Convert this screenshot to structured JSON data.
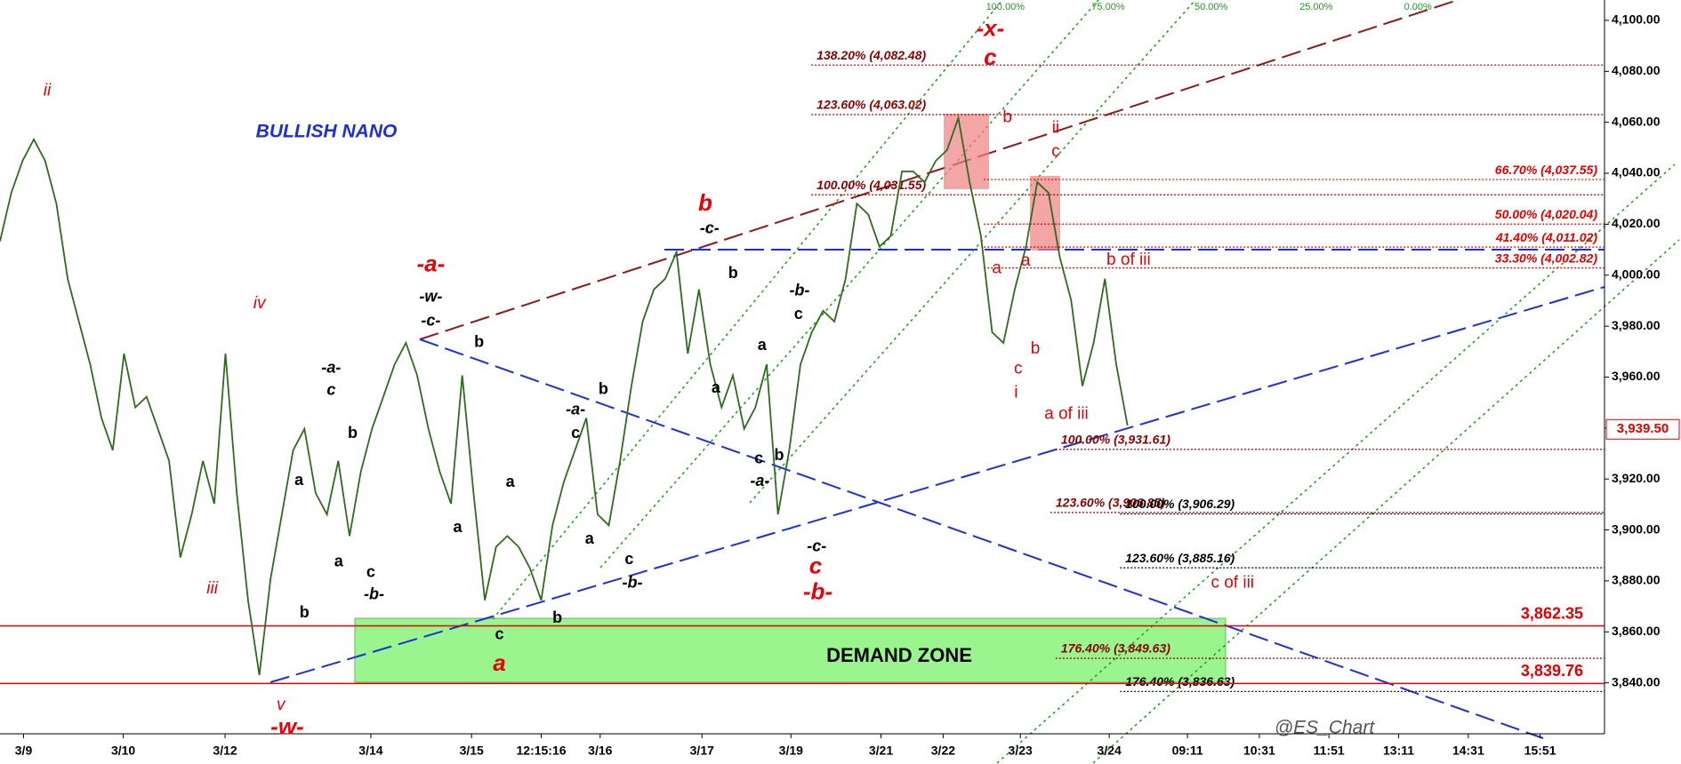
{
  "chart_data": {
    "type": "line",
    "ylim": [
      3820,
      4108
    ],
    "yticks": [
      {
        "value": 3840,
        "label": "3,840.00"
      },
      {
        "value": 3860,
        "label": "3,860.00"
      },
      {
        "value": 3880,
        "label": "3,880.00"
      },
      {
        "value": 3900,
        "label": "3,900.00"
      },
      {
        "value": 3920,
        "label": "3,920.00"
      },
      {
        "value": 3940,
        "label": "3,940.00"
      },
      {
        "value": 3960,
        "label": "3,960.00"
      },
      {
        "value": 3980,
        "label": "3,980.00"
      },
      {
        "value": 4000,
        "label": "4,000.00"
      },
      {
        "value": 4020,
        "label": "4,020.00"
      },
      {
        "value": 4040,
        "label": "4,040.00"
      },
      {
        "value": 4060,
        "label": "4,060.00"
      },
      {
        "value": 4080,
        "label": "4,080.00"
      },
      {
        "value": 4100,
        "label": "4,100.00"
      }
    ],
    "x_tick_labels": [
      "3/9",
      "3/10",
      "3/12",
      "3/14",
      "3/15",
      "12:15:16",
      "3/16",
      "3/17",
      "3/19",
      "3/21",
      "3/22",
      "3/23",
      "3/24",
      "09:11",
      "10:31",
      "11:51",
      "13:11",
      "14:31",
      "15:51"
    ],
    "series": [
      {
        "color": "#2e6b1f",
        "values": [
          4013.3,
          4032.3,
          4044.9,
          4053.3,
          4044.9,
          4028.1,
          3998.6,
          3981.8,
          3965.0,
          3943.9,
          3931.3,
          3969.2,
          3948.1,
          3952.3,
          3939.7,
          3927.1,
          3889.2,
          3906.1,
          3927.1,
          3910.3,
          3969.2,
          3914.5,
          3872.4,
          3843.0,
          3880.8,
          3906.1,
          3931.3,
          3939.7,
          3914.5,
          3906.1,
          3927.1,
          3897.6,
          3922.9,
          3939.7,
          3952.3,
          3965.0,
          3973.4,
          3960.7,
          3939.7,
          3922.9,
          3910.3,
          3960.7,
          3914.5,
          3872.4,
          3893.4,
          3897.6,
          3893.4,
          3885.0,
          3872.4,
          3901.8,
          3918.7,
          3931.3,
          3943.9,
          3906.1,
          3901.8,
          3927.1,
          3956.5,
          3981.8,
          3994.4,
          3998.6,
          4009.1,
          3969.2,
          3994.4,
          3965.0,
          3948.1,
          3960.7,
          3939.7,
          3948.1,
          3965.0,
          3906.1,
          3931.3,
          3965.0,
          3977.6,
          3986.0,
          3981.8,
          3998.6,
          4028.1,
          4023.9,
          4011.2,
          4015.4,
          4040.7,
          4040.7,
          4036.5,
          4044.9,
          4049.1,
          4061.7,
          4036.5,
          4015.4,
          3977.6,
          3973.4,
          3994.4,
          4011.2,
          4036.5,
          4032.3,
          4007.0,
          3990.2,
          3956.5,
          3973.4,
          3998.6,
          3965.0,
          3941.0
        ]
      }
    ],
    "levels": [
      {
        "value": 4082.48,
        "label": "138.20% (4,082.48)",
        "color": "#8b0000"
      },
      {
        "value": 4063.02,
        "label": "123.60% (4,063.02)",
        "color": "#8b0000"
      },
      {
        "value": 4031.55,
        "label": "100.00% (4,031.55)",
        "color": "#8b0000"
      },
      {
        "value": 4037.55,
        "label": "66.70% (4,037.55)",
        "color": "#e00000"
      },
      {
        "value": 4020.04,
        "label": "50.00% (4,020.04)",
        "color": "#e00000"
      },
      {
        "value": 4011.02,
        "label": "41.40% (4,011.02)",
        "color": "#e00000"
      },
      {
        "value": 4002.82,
        "label": "33.30% (4,002.82)",
        "color": "#e00000"
      },
      {
        "value": 3931.61,
        "label": "100.00% (3,931.61)",
        "color": "#8b0000"
      },
      {
        "value": 3906.85,
        "label": "123.60% (3,906.85)",
        "color": "#8b0000"
      },
      {
        "value": 3906.29,
        "label": "100.00% (3,906.29)",
        "color": "#000000"
      },
      {
        "value": 3885.16,
        "label": "123.60% (3,885.16)",
        "color": "#000000"
      },
      {
        "value": 3849.63,
        "label": "176.40% (3,849.63)",
        "color": "#8b0000"
      },
      {
        "value": 3836.63,
        "label": "176.40% (3,836.63)",
        "color": "#000000"
      }
    ],
    "support_lines": [
      {
        "value": 3862.35,
        "label": "3,862.35"
      },
      {
        "value": 3839.76,
        "label": "3,839.76"
      }
    ],
    "last_price": {
      "value": 3939.5,
      "label": "3,939.50"
    },
    "channel_labels": [
      "100.00%",
      "75.00%",
      "50.00%",
      "25.00%",
      "0.00%"
    ],
    "red_labels": [
      "ii",
      "iv",
      "iii",
      "v",
      "-w-",
      "-a-",
      "a",
      "b",
      "c",
      "-b-",
      "-x-",
      "c",
      "b",
      "ii",
      "c",
      "a",
      "a",
      "b",
      "c",
      "i",
      "a of iii",
      "b of iii",
      "c of iii"
    ],
    "black_labels": [
      "-w-",
      "-c-",
      "b",
      "-a-",
      "c",
      "b",
      "a",
      "a",
      "c",
      "-b-",
      "b",
      "a",
      "a",
      "c",
      "b",
      "-a-",
      "c",
      "b",
      "a",
      "c",
      "-b-",
      "-c-",
      "b",
      "a",
      "a",
      "c",
      "b",
      "-a-",
      "-b-",
      "c",
      "-c-"
    ],
    "trend_label": "BULLISH NANO",
    "zone_label": "DEMAND ZONE",
    "watermark": "@ES_Chart"
  }
}
